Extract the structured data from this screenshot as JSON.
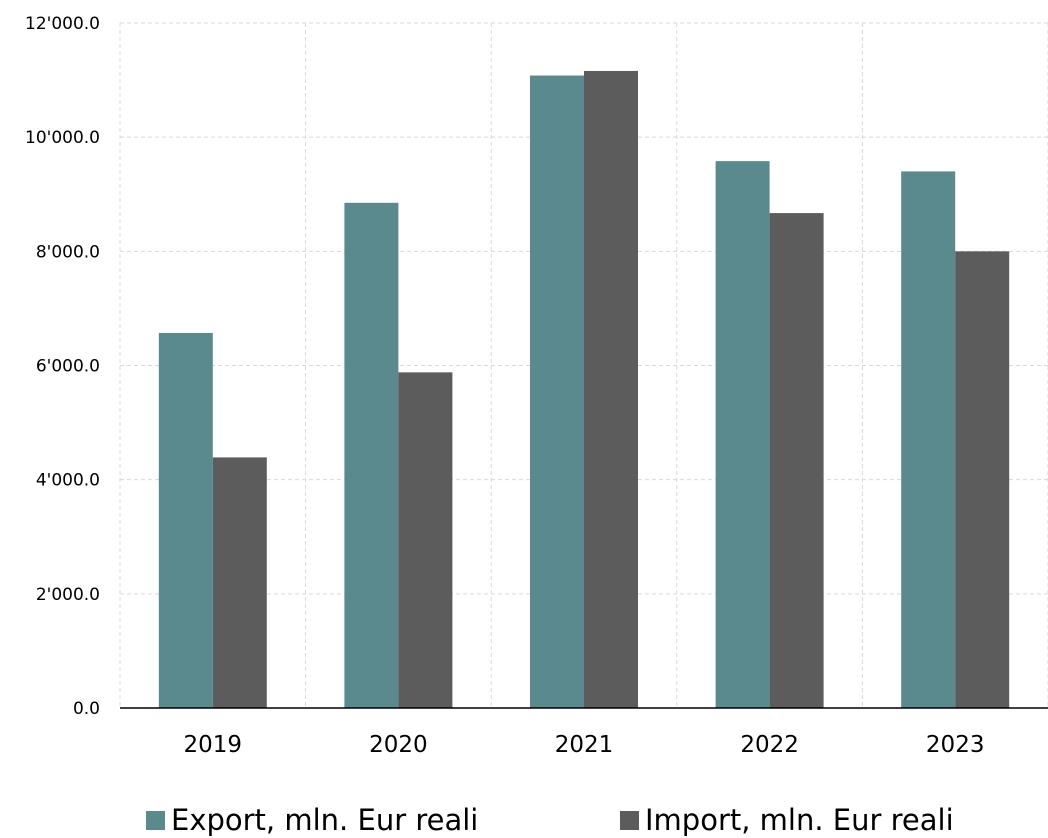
{
  "chart_data": {
    "type": "bar",
    "categories": [
      "2019",
      "2020",
      "2021",
      "2022",
      "2023"
    ],
    "series": [
      {
        "name": "Export, mln. Eur reali",
        "color": "#5b8a8e",
        "values": [
          6570,
          8850,
          11080,
          9580,
          9400
        ]
      },
      {
        "name": "Import, mln. Eur reali",
        "color": "#5c5c5c",
        "values": [
          4390,
          5880,
          11160,
          8670,
          8000
        ]
      }
    ],
    "ylim": [
      0,
      12000
    ],
    "yticks": [
      "0.0",
      "2'000.0",
      "4'000.0",
      "6'000.0",
      "8'000.0",
      "10'000.0",
      "12'000.0"
    ],
    "ytick_values": [
      0,
      2000,
      4000,
      6000,
      8000,
      10000,
      12000
    ],
    "grid": true,
    "legend_position": "bottom",
    "title": "",
    "xlabel": "",
    "ylabel": ""
  }
}
